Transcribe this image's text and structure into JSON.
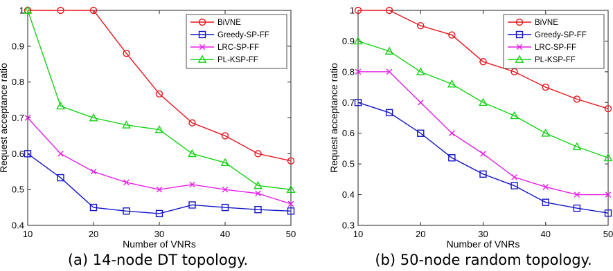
{
  "chart_data": [
    {
      "type": "line",
      "caption": "(a) 14-node DT topology.",
      "xlabel": "Number of VNRs",
      "ylabel": "Request acceptance ratio",
      "x": [
        10,
        15,
        20,
        25,
        30,
        35,
        40,
        45,
        50
      ],
      "xlim": [
        10,
        50
      ],
      "ylim": [
        0.4,
        1.0
      ],
      "xticks": [
        "10",
        "20",
        "30",
        "40",
        "50"
      ],
      "yticks": [
        "0.4",
        "0.5",
        "0.6",
        "0.7",
        "0.8",
        "0.9",
        "1"
      ],
      "legend_position": "top-right",
      "grid": false,
      "series": [
        {
          "name": "BiVNE",
          "color": "#e8141b",
          "marker": "circle",
          "values": [
            1.0,
            1.0,
            1.0,
            0.88,
            0.767,
            0.686,
            0.65,
            0.6,
            0.58
          ]
        },
        {
          "name": "Greedy-SP-FF",
          "color": "#1414c8",
          "marker": "square",
          "values": [
            0.6,
            0.533,
            0.45,
            0.44,
            0.433,
            0.457,
            0.45,
            0.444,
            0.44
          ]
        },
        {
          "name": "LRC-SP-FF",
          "color": "#e61ee6",
          "marker": "x",
          "values": [
            0.7,
            0.6,
            0.55,
            0.52,
            0.5,
            0.514,
            0.5,
            0.489,
            0.46
          ]
        },
        {
          "name": "PL-KSP-FF",
          "color": "#14d214",
          "marker": "triangle",
          "values": [
            1.0,
            0.733,
            0.7,
            0.68,
            0.667,
            0.6,
            0.575,
            0.511,
            0.5
          ]
        }
      ]
    },
    {
      "type": "line",
      "caption": "(b) 50-node random topology.",
      "xlabel": "Number of VNRs",
      "ylabel": "Request acceptance ratio",
      "x": [
        10,
        15,
        20,
        25,
        30,
        35,
        40,
        45,
        50
      ],
      "xlim": [
        10,
        50
      ],
      "ylim": [
        0.3,
        1.0
      ],
      "xticks": [
        "10",
        "20",
        "30",
        "40",
        "50"
      ],
      "yticks": [
        "0.3",
        "0.4",
        "0.5",
        "0.6",
        "0.7",
        "0.8",
        "0.9",
        "1"
      ],
      "legend_position": "top-right",
      "grid": false,
      "series": [
        {
          "name": "BiVNE",
          "color": "#e8141b",
          "marker": "circle",
          "values": [
            1.0,
            1.0,
            0.95,
            0.92,
            0.833,
            0.8,
            0.75,
            0.711,
            0.68
          ]
        },
        {
          "name": "Greedy-SP-FF",
          "color": "#1414c8",
          "marker": "square",
          "values": [
            0.7,
            0.667,
            0.6,
            0.52,
            0.467,
            0.429,
            0.375,
            0.356,
            0.34
          ]
        },
        {
          "name": "LRC-SP-FF",
          "color": "#e61ee6",
          "marker": "x",
          "values": [
            0.8,
            0.8,
            0.7,
            0.6,
            0.533,
            0.457,
            0.425,
            0.4,
            0.4
          ]
        },
        {
          "name": "PL-KSP-FF",
          "color": "#14d214",
          "marker": "triangle",
          "values": [
            0.9,
            0.867,
            0.8,
            0.76,
            0.7,
            0.657,
            0.6,
            0.556,
            0.52
          ]
        }
      ]
    }
  ]
}
